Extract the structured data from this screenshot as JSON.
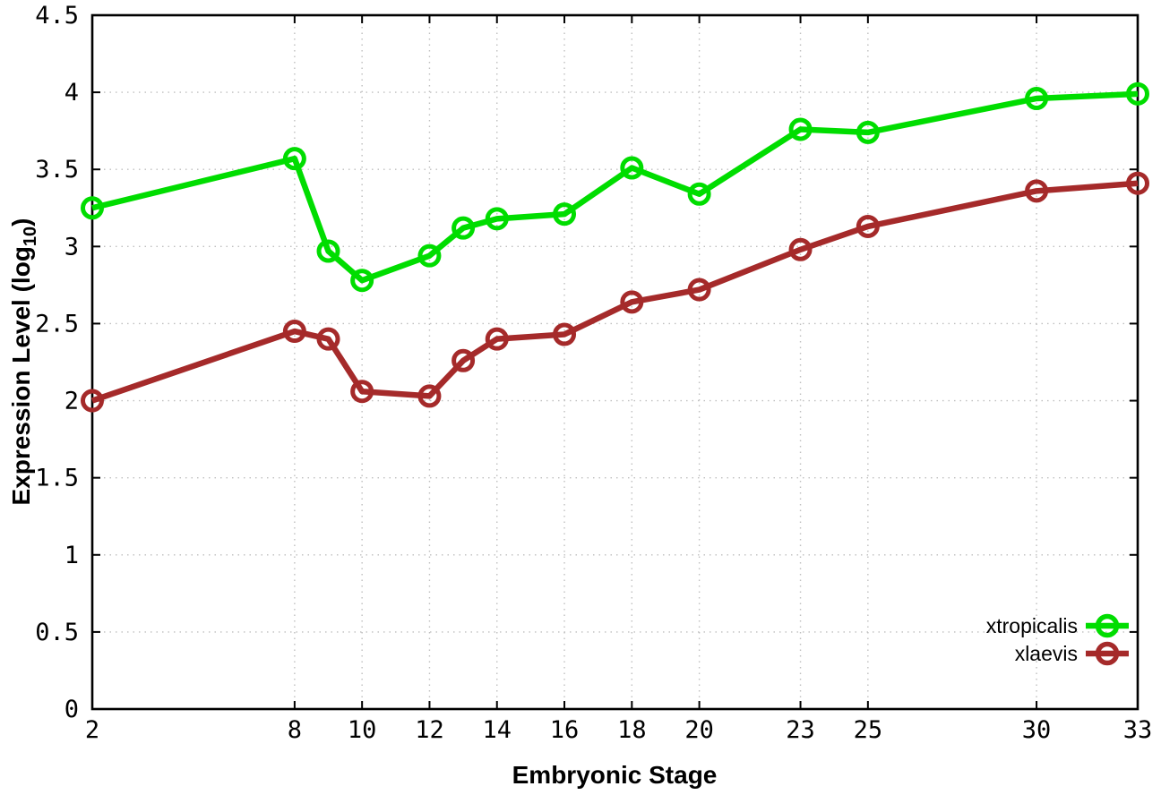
{
  "figure": {
    "background": "#ffffff",
    "border_color": "#000000",
    "grid_color": "#bfbfbf"
  },
  "chart_data": {
    "type": "line",
    "title": "",
    "xlabel": "Embryonic Stage",
    "ylabel": {
      "text": "Expression Level (log",
      "sub": "10",
      "suffix": ")"
    },
    "x": [
      2,
      8,
      9,
      10,
      12,
      13,
      14,
      16,
      18,
      20,
      23,
      25,
      30,
      33
    ],
    "xticks": [
      2,
      8,
      10,
      12,
      14,
      16,
      18,
      20,
      23,
      25,
      30,
      33
    ],
    "yticks": [
      0,
      0.5,
      1,
      1.5,
      2,
      2.5,
      3,
      3.5,
      4,
      4.5
    ],
    "xlim": [
      2,
      33
    ],
    "ylim": [
      0,
      4.5
    ],
    "grid": true,
    "legend_position": "bottom-right-inside",
    "marker": "open-circle",
    "series": [
      {
        "name": "xtropicalis",
        "color": "#00DD00",
        "values": [
          3.25,
          3.57,
          2.97,
          2.78,
          2.94,
          3.12,
          3.18,
          3.21,
          3.51,
          3.34,
          3.76,
          3.74,
          3.96,
          3.99
        ]
      },
      {
        "name": "xlaevis",
        "color": "#A52A2A",
        "values": [
          2.0,
          2.45,
          2.4,
          2.06,
          2.03,
          2.26,
          2.4,
          2.43,
          2.64,
          2.72,
          2.98,
          3.13,
          3.36,
          3.41
        ]
      }
    ]
  }
}
